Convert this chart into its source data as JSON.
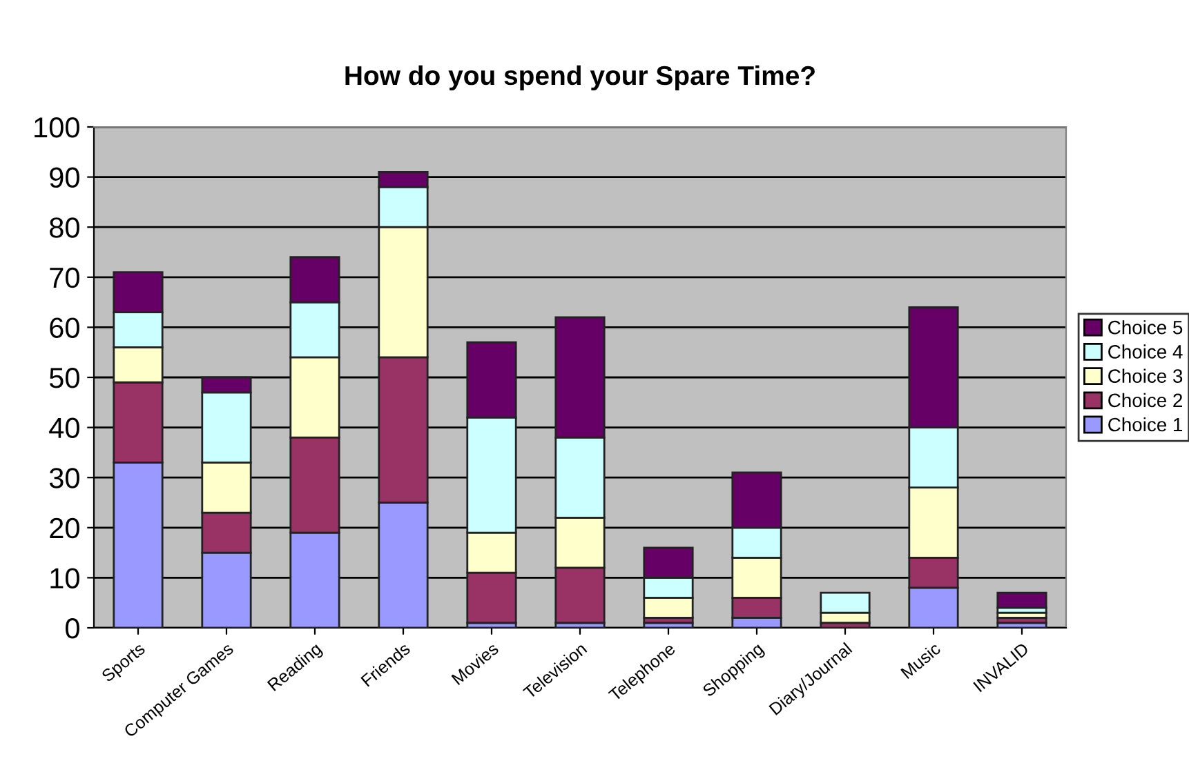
{
  "chart_data": {
    "type": "bar",
    "title": "How do you spend your Spare Time?",
    "categories": [
      "Sports",
      "Computer Games",
      "Reading",
      "Friends",
      "Movies",
      "Television",
      "Telephone",
      "Shopping",
      "Diary/Journal",
      "Music",
      "INVALID"
    ],
    "stacked": true,
    "series": [
      {
        "name": "Choice 1",
        "color": "#9999ff",
        "values": [
          33,
          15,
          19,
          25,
          1,
          1,
          1,
          2,
          0,
          8,
          1
        ]
      },
      {
        "name": "Choice 2",
        "color": "#993366",
        "values": [
          16,
          8,
          19,
          29,
          10,
          11,
          1,
          4,
          1,
          6,
          1
        ]
      },
      {
        "name": "Choice 3",
        "color": "#ffffcc",
        "values": [
          7,
          10,
          16,
          26,
          8,
          10,
          4,
          8,
          2,
          14,
          1
        ]
      },
      {
        "name": "Choice 4",
        "color": "#ccffff",
        "values": [
          7,
          14,
          11,
          8,
          23,
          16,
          4,
          6,
          4,
          12,
          1
        ]
      },
      {
        "name": "Choice 5",
        "color": "#660066",
        "values": [
          8,
          3,
          9,
          3,
          15,
          24,
          6,
          11,
          0,
          24,
          3
        ]
      }
    ],
    "ylim": [
      0,
      100
    ],
    "yticks": [
      0,
      10,
      20,
      30,
      40,
      50,
      60,
      70,
      80,
      90,
      100
    ],
    "grid": "y",
    "legend": "right"
  }
}
